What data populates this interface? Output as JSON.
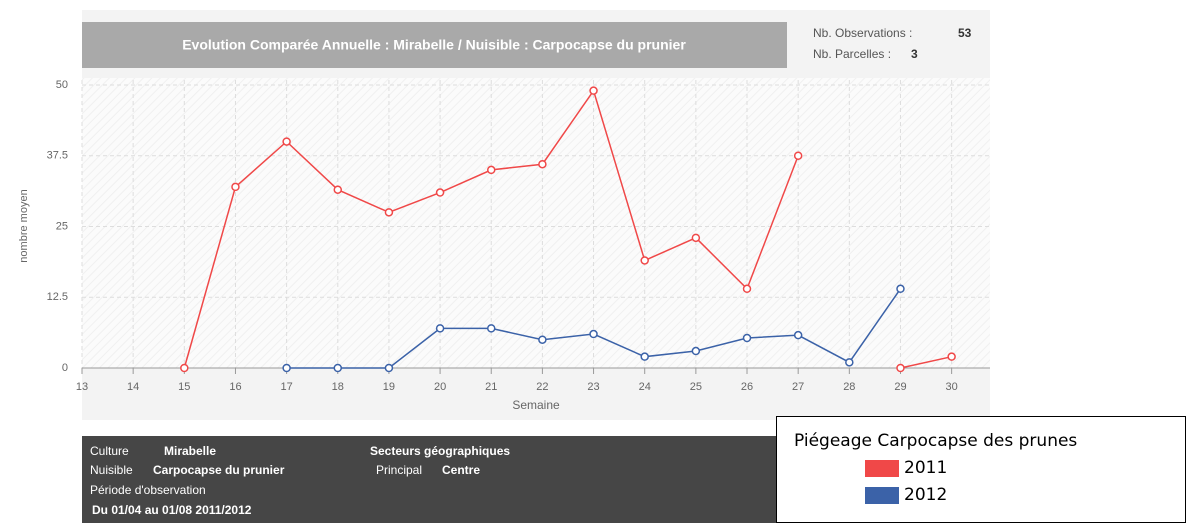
{
  "chart_data": {
    "type": "line",
    "title": "Evolution Comparée Annuelle : Mirabelle / Nuisible : Carpocapse du prunier",
    "stats": [
      {
        "label": "Nb. Observations :",
        "value": "53"
      },
      {
        "label": "Nb. Parcelles :",
        "value": "3"
      }
    ],
    "x_label": "Semaine",
    "y_label": "nombre moyen",
    "x": [
      13,
      14,
      15,
      16,
      17,
      18,
      19,
      20,
      21,
      22,
      23,
      24,
      25,
      26,
      27,
      28,
      29,
      30
    ],
    "series": [
      {
        "name": "2011",
        "color": "#f04848",
        "values": [
          null,
          null,
          0,
          32,
          40,
          31.5,
          27.5,
          31,
          35,
          36,
          49,
          19,
          23,
          14,
          37.5,
          null,
          0,
          2
        ]
      },
      {
        "name": "2012",
        "color": "#3b62a8",
        "values": [
          null,
          null,
          null,
          null,
          0,
          0,
          0,
          7,
          7,
          5,
          6,
          2,
          3,
          5.3,
          5.8,
          1,
          14,
          null
        ]
      }
    ],
    "xlim": [
      13,
      30.75
    ],
    "xticks": [
      13,
      14,
      15,
      16,
      17,
      18,
      19,
      20,
      21,
      22,
      23,
      24,
      25,
      26,
      27,
      28,
      29,
      30
    ],
    "ylim": [
      0,
      50
    ],
    "yticks": [
      0,
      12.5,
      25,
      37.5,
      50
    ],
    "grid": true,
    "legend_title": "Piégeage Carpocapse des prunes"
  },
  "info": {
    "culture_label": "Culture",
    "culture": "Mirabelle",
    "nuisible_label": "Nuisible",
    "nuisible": "Carpocapse du prunier",
    "periode_label": "Période d'observation",
    "periode": "Du 01/04 au 01/08 2011/2012",
    "secteurs": "Secteurs géographiques",
    "principal_label": "Principal",
    "principal": "Centre"
  }
}
